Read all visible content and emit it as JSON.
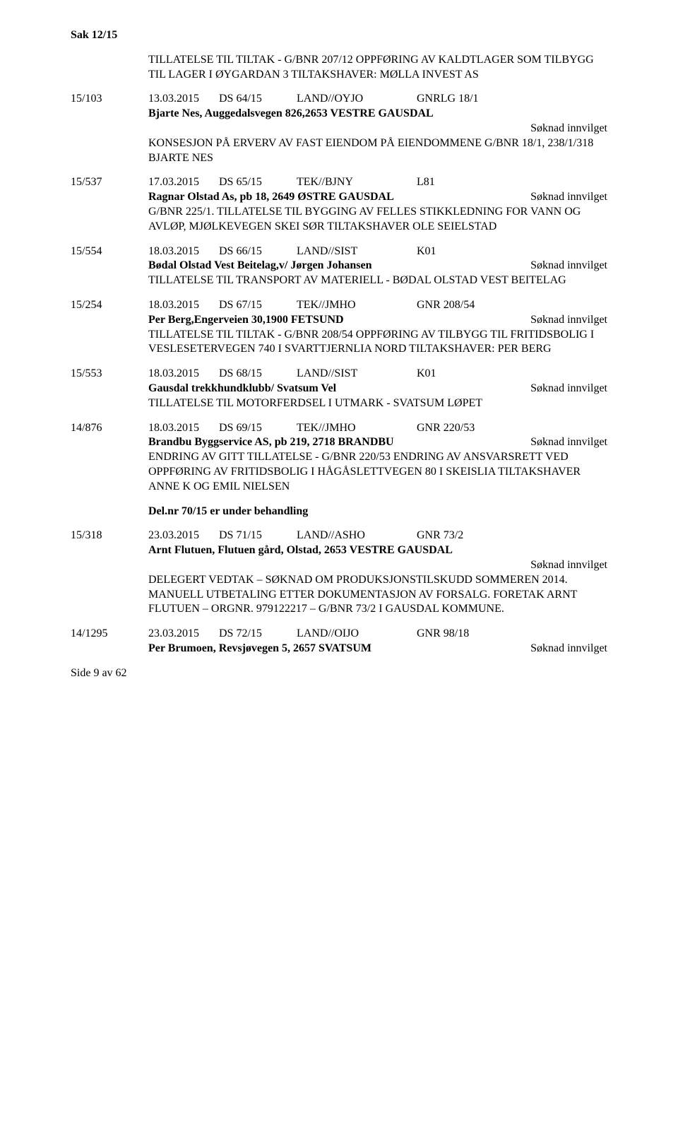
{
  "caseHeader": "Sak 12/15",
  "footer": "Side 9 av 62",
  "entries": [
    {
      "num": "",
      "date": "",
      "type": "",
      "ref": "",
      "code": "",
      "party": "",
      "status": "",
      "desc": "TILLATELSE TIL TILTAK - G/BNR 207/12 OPPFØRING AV KALDTLAGER SOM TILBYGG TIL LAGER I ØYGARDAN 3 TILTAKSHAVER: MØLLA INVEST AS",
      "noHeader": true
    },
    {
      "num": "15/103",
      "date": "13.03.2015",
      "type": "DS  64/15",
      "ref": "LAND//OYJO",
      "code": "GNRLG 18/1",
      "party": "Bjarte Nes, Auggedalsvegen 826,2653 VESTRE GAUSDAL",
      "partyBreak": true,
      "status": "Søknad innvilget",
      "desc": "KONSESJON PÅ ERVERV AV FAST EIENDOM PÅ EIENDOMMENE G/BNR 18/1, 238/1/318 BJARTE NES"
    },
    {
      "num": "15/537",
      "date": "17.03.2015",
      "type": "DS  65/15",
      "ref": "TEK//BJNY",
      "code": "L81",
      "party": "Ragnar Olstad As, pb 18, 2649 ØSTRE GAUSDAL",
      "status": "Søknad innvilget",
      "desc": "G/BNR 225/1. TILLATELSE TIL BYGGING AV FELLES STIKKLEDNING FOR VANN OG AVLØP, MJØLKEVEGEN SKEI SØR TILTAKSHAVER OLE SEIELSTAD"
    },
    {
      "num": "15/554",
      "date": "18.03.2015",
      "type": "DS  66/15",
      "ref": "LAND//SIST",
      "code": "K01",
      "party": "Bødal Olstad Vest Beitelag,v/ Jørgen Johansen",
      "status": "Søknad innvilget",
      "desc": "TILLATELSE TIL TRANSPORT AV MATERIELL -  BØDAL OLSTAD VEST BEITELAG"
    },
    {
      "num": "15/254",
      "date": "18.03.2015",
      "type": "DS  67/15",
      "ref": "TEK//JMHO",
      "code": "GNR 208/54",
      "party": "Per Berg,Engerveien 30,1900 FETSUND",
      "status": "Søknad innvilget",
      "desc": "TILLATELSE TIL TILTAK - G/BNR 208/54 OPPFØRING AV  TILBYGG TIL FRITIDSBOLIG I VESLESETERVEGEN 740 I SVARTTJERNLIA NORD TILTAKSHAVER: PER BERG"
    },
    {
      "num": "15/553",
      "date": "18.03.2015",
      "type": "DS  68/15",
      "ref": "LAND//SIST",
      "code": "K01",
      "party": "Gausdal trekkhundklubb/ Svatsum Vel",
      "status": "Søknad innvilget",
      "desc": "TILLATELSE TIL MOTORFERDSEL I UTMARK - SVATSUM LØPET"
    },
    {
      "num": "14/876",
      "date": "18.03.2015",
      "type": "DS  69/15",
      "ref": "TEK//JMHO",
      "code": "GNR 220/53",
      "party": "Brandbu Byggservice AS, pb 219, 2718 BRANDBU",
      "status": "Søknad innvilget",
      "desc": "ENDRING AV GITT TILLATELSE - G/BNR 220/53 ENDRING AV ANSVARSRETT VED OPPFØRING AV FRITIDSBOLIG I HÅGÅSLETTVEGEN 80 I SKEISLIA TILTAKSHAVER ANNE K OG EMIL NIELSEN",
      "note": "Del.nr 70/15 er under behandling"
    },
    {
      "num": "15/318",
      "date": "23.03.2015",
      "type": "DS  71/15",
      "ref": "LAND//ASHO",
      "code": "GNR 73/2",
      "party": "Arnt Flutuen, Flutuen gård, Olstad, 2653 VESTRE GAUSDAL",
      "partyBreak": true,
      "status": "Søknad innvilget",
      "desc": "DELEGERT VEDTAK – SØKNAD OM PRODUKSJONSTILSKUDD SOMMEREN 2014. MANUELL UTBETALING ETTER DOKUMENTASJON AV FORSALG. FORETAK ARNT FLUTUEN – ORGNR. 979122217 – G/BNR 73/2 I GAUSDAL KOMMUNE."
    },
    {
      "num": "14/1295",
      "date": "23.03.2015",
      "type": "DS  72/15",
      "ref": "LAND//OIJO",
      "code": "GNR 98/18",
      "party": "Per Brumoen, Revsjøvegen 5, 2657 SVATSUM",
      "status": "Søknad innvilget",
      "desc": ""
    }
  ]
}
